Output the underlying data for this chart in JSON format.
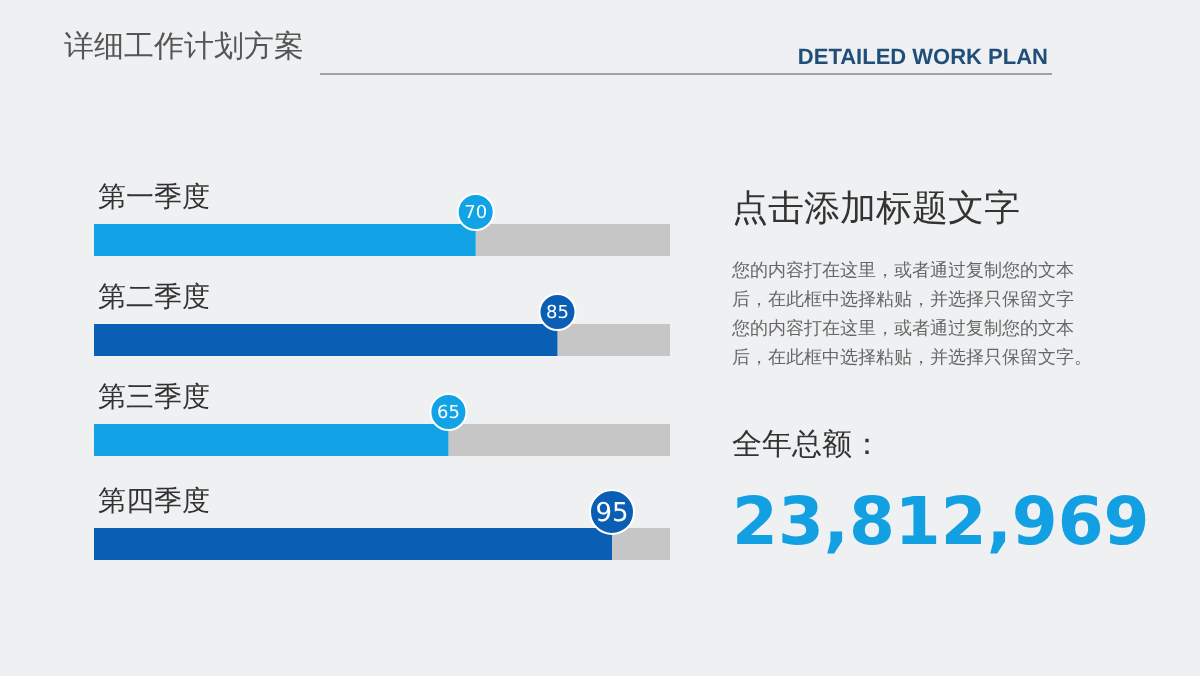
{
  "chart_data": {
    "type": "bar",
    "orientation": "horizontal",
    "title": "详细工作计划方案",
    "subtitle": "DETAILED WORK PLAN",
    "categories": [
      "第一季度",
      "第二季度",
      "第三季度",
      "第四季度"
    ],
    "values": [
      70,
      85,
      65,
      95
    ],
    "colors": [
      "#11a3e6",
      "#0a5fb4",
      "#11a3e6",
      "#0a5fb4"
    ],
    "data_labels": true,
    "tick_labels": "y",
    "annotations": [
      "点击添加标题文字",
      "您的内容打在这里，或者通过复制您的文本",
      "后，在此框中选择粘贴，并选择只保留文字",
      "您的内容打在这里，或者通过复制您的文本",
      "后，在此框中选择粘贴，并选择只保留文字。",
      "全年总额：",
      "23,812,969"
    ]
  }
}
